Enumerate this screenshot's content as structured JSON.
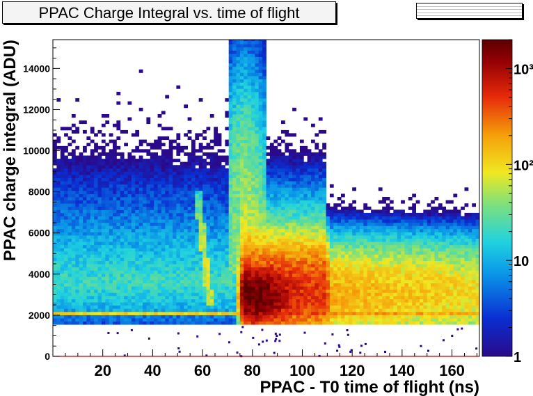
{
  "chart_data": {
    "type": "heatmap",
    "title": "PPAC Charge Integral vs. time of flight",
    "xlabel": "PPAC - T0 time of flight (ns)",
    "ylabel": "PPAC charge integral (ADU)",
    "xlim": [
      0,
      171
    ],
    "ylim": [
      0,
      15400
    ],
    "x_ticks": [
      20,
      40,
      60,
      80,
      100,
      120,
      140,
      160
    ],
    "y_ticks": [
      0,
      2000,
      4000,
      6000,
      8000,
      10000,
      12000,
      14000
    ],
    "z_scale": "log",
    "z_range": [
      1,
      2000
    ],
    "z_ticks": [
      {
        "value": 1,
        "label": "1"
      },
      {
        "value": 10,
        "label": "10"
      },
      {
        "value": 100,
        "label": "10²"
      },
      {
        "value": 1000,
        "label": "10³"
      }
    ],
    "colormap": [
      "#2a0a8a",
      "#0a2ed2",
      "#0a96e8",
      "#20d2e0",
      "#7ee07c",
      "#f0e822",
      "#f59e0a",
      "#e62a0a",
      "#960005",
      "#5a0000"
    ],
    "features": [
      {
        "name": "baseline band",
        "y_range": [
          1650,
          1750
        ],
        "level": "~10-20"
      },
      {
        "name": "horizontal band",
        "x_range": [
          0,
          171
        ],
        "y_range": [
          2000,
          2200
        ],
        "level": "~100"
      },
      {
        "name": "narrow diagonal ridge",
        "x_from": 58,
        "x_to": 63,
        "y_range": [
          2500,
          8000
        ],
        "level": "~30-80"
      },
      {
        "name": "main cluster",
        "x_range": [
          75,
          110
        ],
        "y_range": [
          1800,
          5500
        ],
        "peak_x": 80,
        "peak_y": 3000,
        "level": "~2000"
      },
      {
        "name": "tail",
        "x_range": [
          110,
          171
        ],
        "y_range": [
          2000,
          6000
        ],
        "level": "~100-300"
      }
    ]
  }
}
